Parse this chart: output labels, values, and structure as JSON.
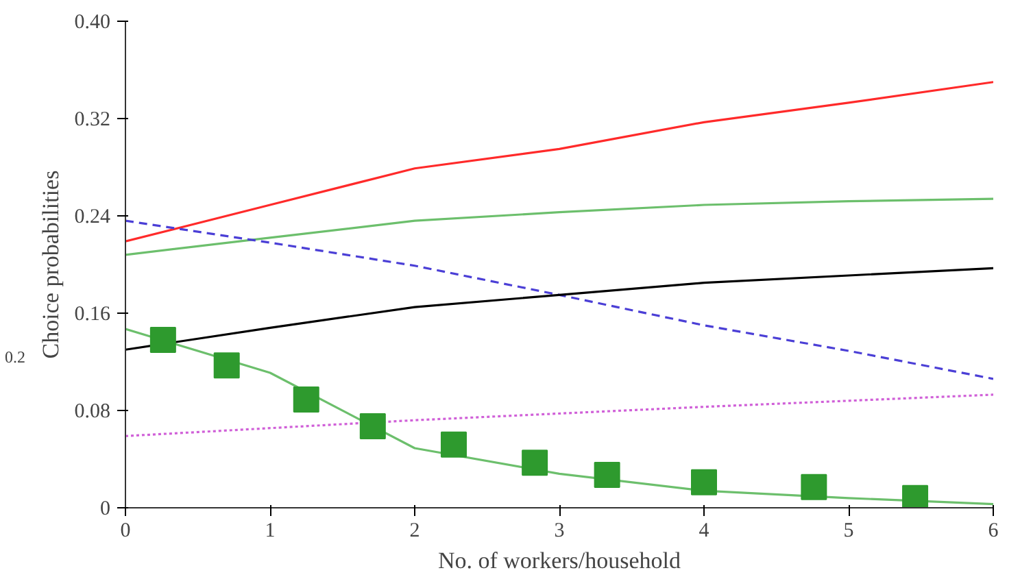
{
  "chart_data": {
    "type": "line",
    "xlabel": "No. of workers/household",
    "ylabel": "Choice probabilities",
    "xlim": [
      0,
      6
    ],
    "ylim": [
      0,
      0.4
    ],
    "xticks": [
      0,
      1,
      2,
      3,
      4,
      5,
      6
    ],
    "yticks": [
      0,
      0.08,
      0.16,
      0.24,
      0.32,
      {
        "value": 0.4,
        "label": "0.40"
      }
    ],
    "annotations": [
      "0.2"
    ],
    "grid": false,
    "series": [
      {
        "color": "#ff2a2a",
        "line_style": "solid",
        "x": [
          0,
          1,
          2,
          3,
          4,
          5,
          6
        ],
        "values": [
          0.219,
          0.249,
          0.279,
          0.295,
          0.317,
          0.333,
          0.35
        ]
      },
      {
        "color": "#6cbf6c",
        "line_style": "solid",
        "x": [
          0,
          1,
          2,
          3,
          4,
          5,
          6
        ],
        "values": [
          0.208,
          0.222,
          0.236,
          0.243,
          0.249,
          0.252,
          0.254
        ]
      },
      {
        "color": "#4b3fd6",
        "line_style": "dashed",
        "x": [
          0,
          1,
          2,
          3,
          4,
          5,
          6
        ],
        "values": [
          0.236,
          0.218,
          0.199,
          0.175,
          0.15,
          0.129,
          0.106
        ]
      },
      {
        "color": "#000000",
        "line_style": "solid",
        "x": [
          0,
          1,
          2,
          3,
          4,
          5,
          6
        ],
        "values": [
          0.13,
          0.148,
          0.165,
          0.175,
          0.185,
          0.191,
          0.197
        ]
      },
      {
        "color": "#d060d8",
        "line_style": "dotted",
        "x": [
          0,
          2,
          4,
          6
        ],
        "values": [
          0.059,
          0.072,
          0.083,
          0.093
        ]
      },
      {
        "color": "#6cbf6c",
        "line_style": "solid",
        "x": [
          0,
          1,
          2,
          3,
          4,
          5,
          6
        ],
        "values": [
          0.147,
          0.111,
          0.049,
          0.028,
          0.014,
          0.008,
          0.003
        ]
      },
      {
        "type": "scatter",
        "marker": "square",
        "color": "#2e9a2e",
        "x": [
          0.26,
          0.7,
          1.25,
          1.71,
          2.27,
          2.83,
          3.33,
          4.0,
          4.76,
          5.46
        ],
        "values": [
          0.138,
          0.117,
          0.089,
          0.067,
          0.052,
          0.037,
          0.027,
          0.021,
          0.017,
          0.008
        ]
      }
    ]
  }
}
